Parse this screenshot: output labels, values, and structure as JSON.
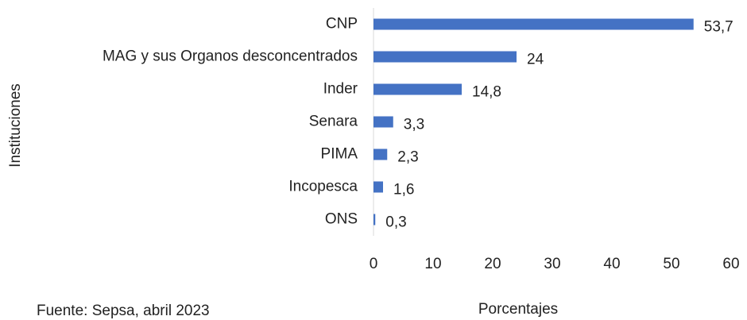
{
  "chart_data": {
    "type": "hbar",
    "categories": [
      "CNP",
      "MAG y sus Organos desconcentrados",
      "Inder",
      "Senara",
      "PIMA",
      "Incopesca",
      "ONS"
    ],
    "values": [
      53.7,
      24,
      14.8,
      3.3,
      2.3,
      1.6,
      0.3
    ],
    "value_labels": [
      "53,7",
      "24",
      "14,8",
      "3,3",
      "2,3",
      "1,6",
      "0,3"
    ],
    "color": "#4472c4",
    "xlim": [
      0,
      60
    ],
    "xticks": [
      0,
      10,
      20,
      30,
      40,
      50,
      60
    ],
    "xlabel": "Porcentajes",
    "ylabel": "Instituciones",
    "note": "Fuente: Sepsa, abril 2023",
    "grid": false
  }
}
